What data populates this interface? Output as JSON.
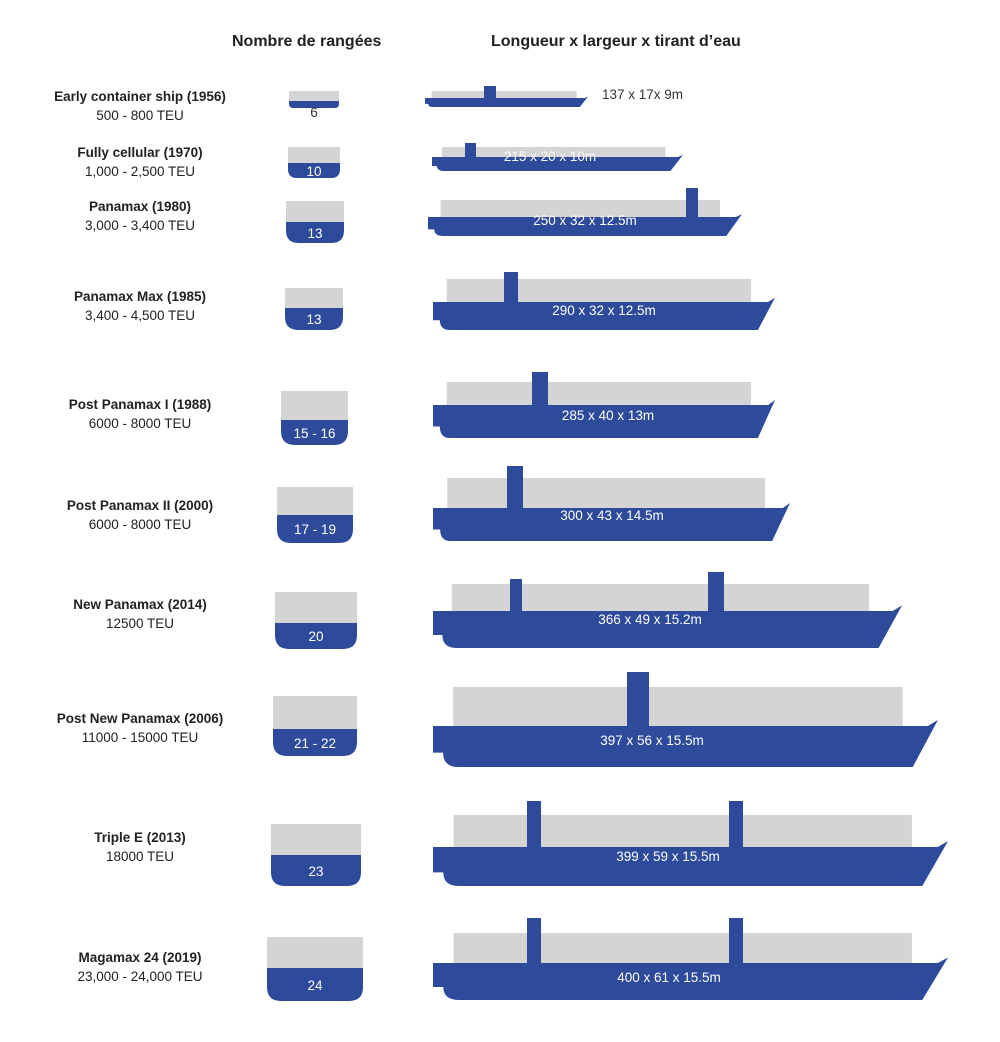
{
  "headers": {
    "rows_col": "Nombre de rangées",
    "dims_col": "Longueur x largeur x tirant d’eau"
  },
  "colors": {
    "hull": "#2d4a9b",
    "cargo": "#d4d4d4",
    "text": "#222222"
  },
  "ships": [
    {
      "name": "Early container ship (1956)",
      "teu": "500 - 800 TEU",
      "rows": "6",
      "dims": "137 x 17x 9m"
    },
    {
      "name": "Fully cellular (1970)",
      "teu": "1,000 - 2,500 TEU",
      "rows": "10",
      "dims": "215 x 20 x 10m"
    },
    {
      "name": "Panamax (1980)",
      "teu": "3,000 - 3,400 TEU",
      "rows": "13",
      "dims": "250 x 32 x 12.5m"
    },
    {
      "name": "Panamax Max (1985)",
      "teu": "3,400 - 4,500 TEU",
      "rows": "13",
      "dims": "290 x 32 x 12.5m"
    },
    {
      "name": "Post Panamax I (1988)",
      "teu": "6000 - 8000 TEU",
      "rows": "15 - 16",
      "dims": "285 x 40 x 13m"
    },
    {
      "name": "Post Panamax II (2000)",
      "teu": "6000 - 8000 TEU",
      "rows": "17 - 19",
      "dims": "300 x 43 x 14.5m"
    },
    {
      "name": "New Panamax (2014)",
      "teu": "12500 TEU",
      "rows": "20",
      "dims": "366 x 49 x 15.2m"
    },
    {
      "name": "Post New Panamax (2006)",
      "teu": "11000 - 15000 TEU",
      "rows": "21 - 22",
      "dims": "397 x 56 x 15.5m"
    },
    {
      "name": "Triple E (2013)",
      "teu": "18000 TEU",
      "rows": "23",
      "dims": "399 x 59 x 15.5m"
    },
    {
      "name": "Magamax 24 (2019)",
      "teu": "23,000 - 24,000 TEU",
      "rows": "24",
      "dims": "400 x 61 x 15.5m"
    }
  ]
}
